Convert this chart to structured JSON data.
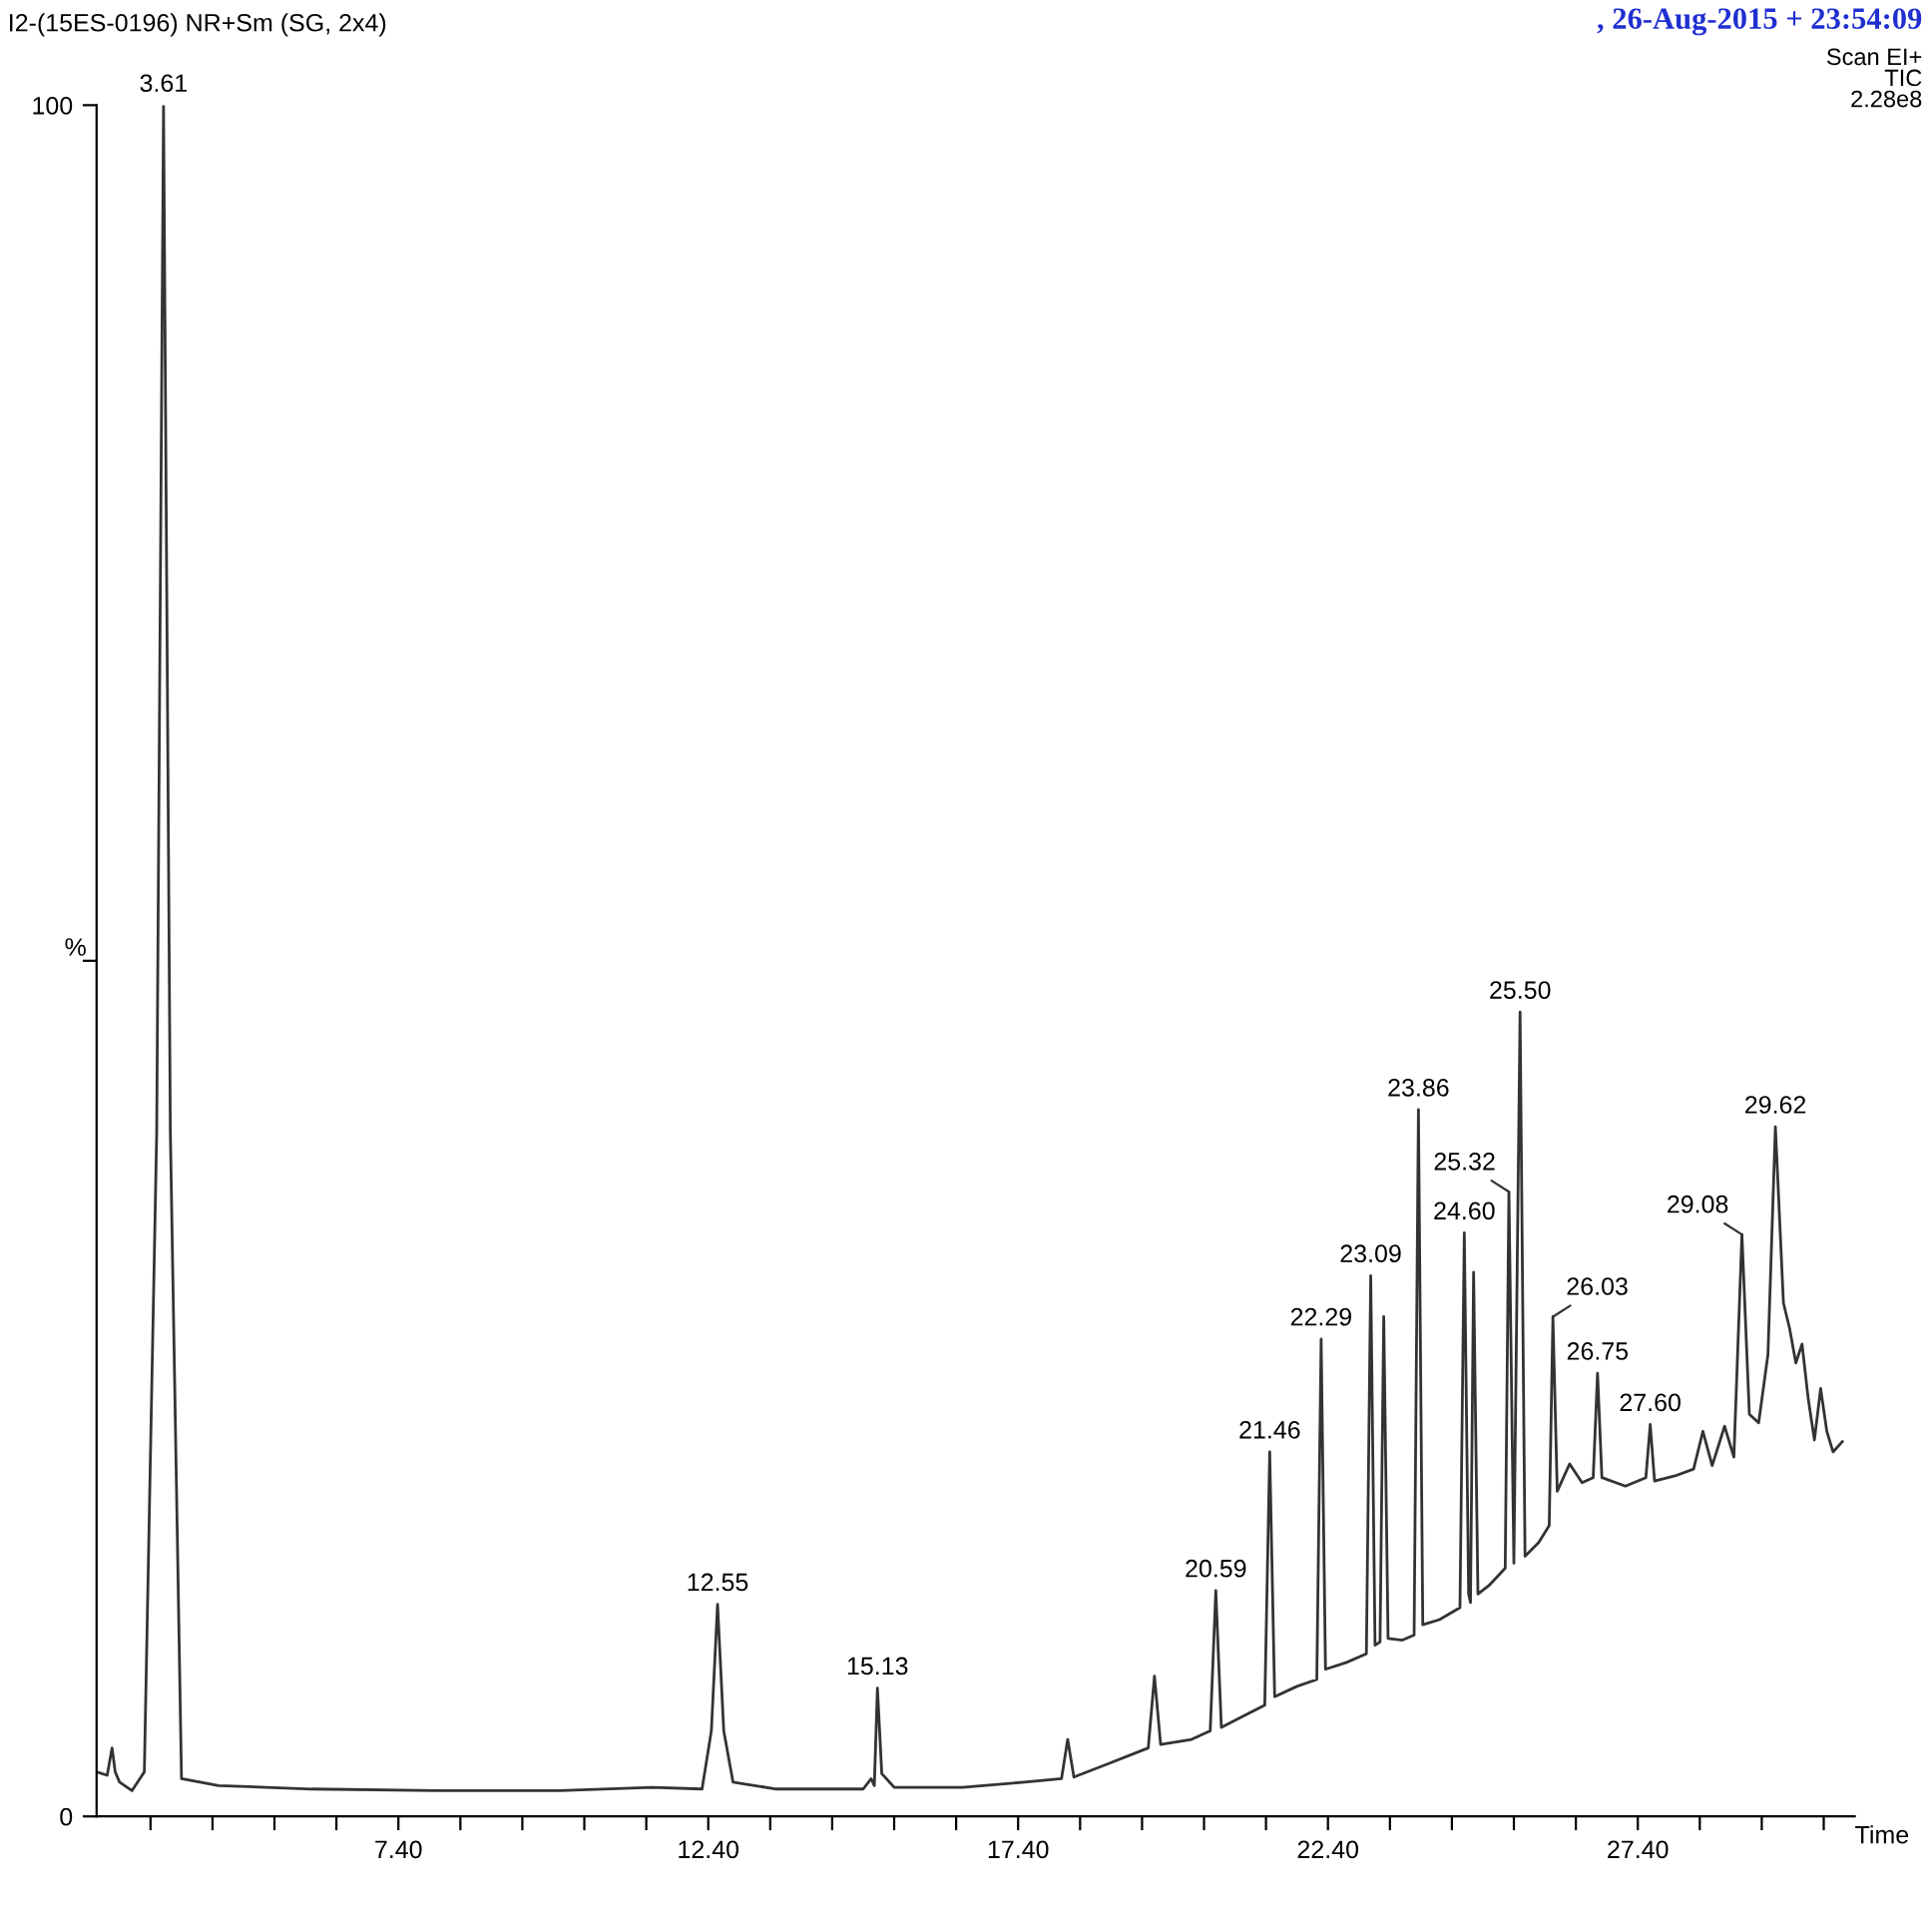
{
  "chart_data": {
    "type": "line",
    "title": "I2-(15ES-0196) NR+Sm (SG, 2x4)",
    "subtitle": ", 26-Aug-2015 + 23:54:09",
    "xlabel": "Time",
    "ylabel": "%",
    "annotations": [
      "Scan EI+",
      "TIC",
      "2.28e8",
      {
        "text": "3.61",
        "x": 3.61,
        "y": 100
      },
      {
        "text": "12.55",
        "x": 12.55,
        "y": 12.4
      },
      {
        "text": "15.13",
        "x": 15.13,
        "y": 7.5
      },
      {
        "text": "20.59",
        "x": 20.59,
        "y": 13.2
      },
      {
        "text": "21.46",
        "x": 21.46,
        "y": 21.3
      },
      {
        "text": "22.29",
        "x": 22.29,
        "y": 27.9
      },
      {
        "text": "23.09",
        "x": 23.09,
        "y": 31.6
      },
      {
        "text": "23.86",
        "x": 23.86,
        "y": 41.3
      },
      {
        "text": "24.60",
        "x": 24.6,
        "y": 34.1
      },
      {
        "text": "25.32",
        "x": 25.32,
        "y": 36.5
      },
      {
        "text": "25.50",
        "x": 25.5,
        "y": 47.0
      },
      {
        "text": "26.03",
        "x": 26.03,
        "y": 29.2
      },
      {
        "text": "26.75",
        "x": 26.75,
        "y": 25.9
      },
      {
        "text": "27.60",
        "x": 27.6,
        "y": 22.9
      },
      {
        "text": "29.08",
        "x": 29.08,
        "y": 34.0
      },
      {
        "text": "29.62",
        "x": 29.62,
        "y": 40.3
      }
    ],
    "series": [
      {
        "color": "#333333",
        "x": [
          2.53,
          2.7,
          2.78,
          2.83,
          2.9,
          3.1,
          3.3,
          3.5,
          3.61,
          3.72,
          3.9,
          4.5,
          6.0,
          8.0,
          10.0,
          11.5,
          12.3,
          12.45,
          12.55,
          12.65,
          12.8,
          13.5,
          14.9,
          15.03,
          15.08,
          15.13,
          15.2,
          15.4,
          16.5,
          17.5,
          18.1,
          18.2,
          18.3,
          18.8,
          19.5,
          19.6,
          19.7,
          20.2,
          20.5,
          20.59,
          20.68,
          21.0,
          21.38,
          21.46,
          21.54,
          21.9,
          22.22,
          22.29,
          22.36,
          22.7,
          23.02,
          23.09,
          23.16,
          23.24,
          23.3,
          23.37,
          23.6,
          23.79,
          23.86,
          23.93,
          24.2,
          24.53,
          24.6,
          24.67,
          24.7,
          24.75,
          24.82,
          25.0,
          25.26,
          25.32,
          25.4,
          25.5,
          25.58,
          25.8,
          25.97,
          26.03,
          26.1,
          26.3,
          26.5,
          26.68,
          26.75,
          26.82,
          27.2,
          27.53,
          27.6,
          27.67,
          28.0,
          28.3,
          28.45,
          28.6,
          28.8,
          28.95,
          29.08,
          29.2,
          29.35,
          29.5,
          29.62,
          29.75,
          29.85,
          29.95,
          30.05,
          30.15,
          30.25,
          30.35,
          30.45,
          30.55,
          30.7
        ],
        "values": [
          2.6,
          2.4,
          4.0,
          2.6,
          2.0,
          1.5,
          2.6,
          40,
          100,
          40,
          2.2,
          1.8,
          1.6,
          1.5,
          1.5,
          1.7,
          1.6,
          5,
          12.4,
          5,
          2.0,
          1.6,
          1.6,
          2.2,
          1.8,
          7.5,
          2.5,
          1.7,
          1.7,
          2.0,
          2.2,
          4.5,
          2.3,
          3.0,
          4.0,
          8.2,
          4.2,
          4.5,
          5.0,
          13.2,
          5.2,
          5.8,
          6.5,
          21.3,
          7.0,
          7.6,
          8.0,
          27.9,
          8.6,
          9.0,
          9.5,
          31.6,
          10.0,
          10.2,
          29.2,
          10.4,
          10.3,
          10.6,
          41.3,
          11.2,
          11.5,
          12.2,
          34.1,
          13.0,
          12.5,
          31.8,
          13.0,
          13.5,
          14.5,
          36.5,
          14.8,
          47.0,
          15.2,
          16.0,
          17.0,
          29.2,
          19.0,
          20.6,
          19.5,
          19.8,
          25.9,
          19.8,
          19.3,
          19.8,
          22.9,
          19.6,
          19.9,
          20.3,
          22.5,
          20.5,
          22.8,
          21.0,
          34.0,
          23.5,
          23.0,
          27.0,
          40.3,
          30.0,
          28.5,
          26.5,
          27.6,
          24.4,
          22.0,
          25.0,
          22.5,
          21.3,
          21.9
        ]
      }
    ],
    "xlim": [
      2.53,
      30.9
    ],
    "ylim": [
      0,
      100
    ],
    "xticks": [
      {
        "value": 3.4,
        "label": null
      },
      {
        "value": 4.4,
        "label": null
      },
      {
        "value": 5.4,
        "label": null
      },
      {
        "value": 6.4,
        "label": null
      },
      {
        "value": 7.4,
        "label": "7.40"
      },
      {
        "value": 8.4,
        "label": null
      },
      {
        "value": 9.4,
        "label": null
      },
      {
        "value": 10.4,
        "label": null
      },
      {
        "value": 11.4,
        "label": null
      },
      {
        "value": 12.4,
        "label": "12.40"
      },
      {
        "value": 13.4,
        "label": null
      },
      {
        "value": 14.4,
        "label": null
      },
      {
        "value": 15.4,
        "label": null
      },
      {
        "value": 16.4,
        "label": null
      },
      {
        "value": 17.4,
        "label": "17.40"
      },
      {
        "value": 18.4,
        "label": null
      },
      {
        "value": 19.4,
        "label": null
      },
      {
        "value": 20.4,
        "label": null
      },
      {
        "value": 21.4,
        "label": null
      },
      {
        "value": 22.4,
        "label": "22.40"
      },
      {
        "value": 23.4,
        "label": null
      },
      {
        "value": 24.4,
        "label": null
      },
      {
        "value": 25.4,
        "label": null
      },
      {
        "value": 26.4,
        "label": null
      },
      {
        "value": 27.4,
        "label": "27.40"
      },
      {
        "value": 28.4,
        "label": null
      },
      {
        "value": 29.4,
        "label": null
      },
      {
        "value": 30.4,
        "label": null
      }
    ],
    "yticks": [
      0,
      {
        "value": 50,
        "label": null
      },
      100
    ],
    "marker": "none",
    "line_style": "solid"
  }
}
